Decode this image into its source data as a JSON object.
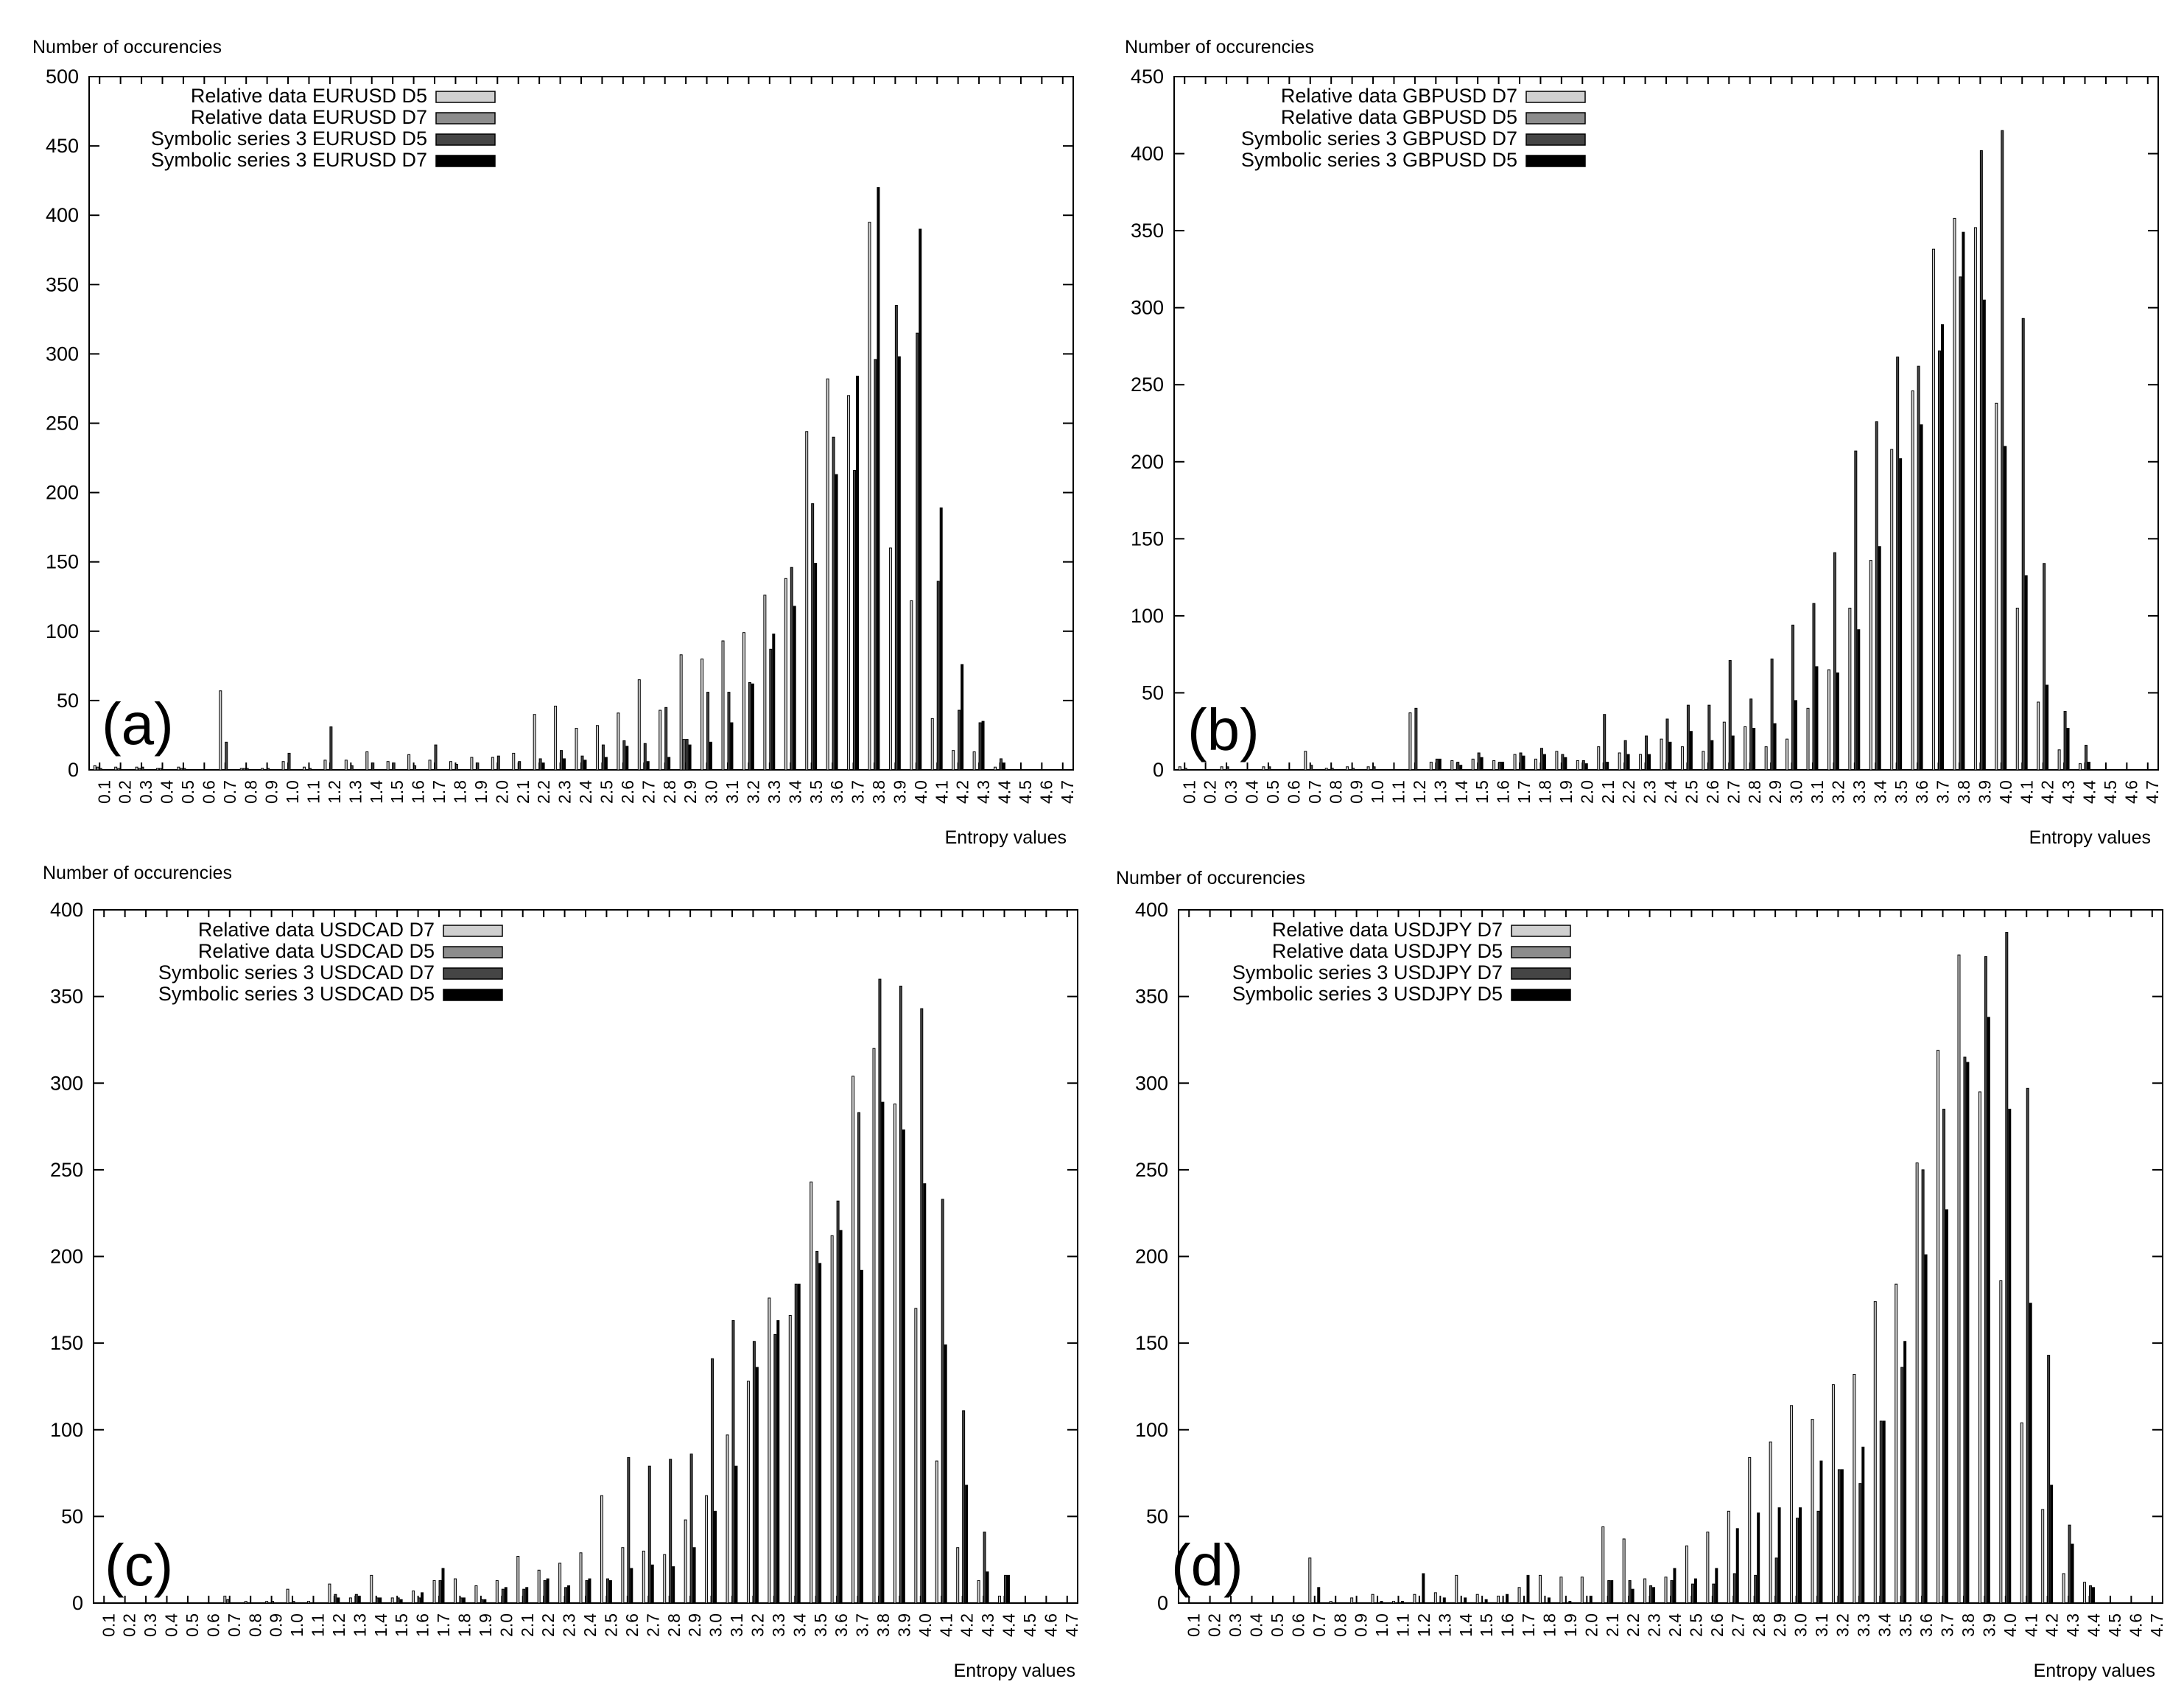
{
  "figure": {
    "colors": {
      "series": [
        "#d0d0d0",
        "#8c8c8c",
        "#454545",
        "#000000"
      ],
      "frame": "#000000",
      "background": "#ffffff"
    }
  },
  "chart_data": [
    {
      "type": "bar",
      "panel_label": "(a)",
      "ylabel": "Number of occurencies",
      "xlabel": "Entropy values",
      "ylim": [
        0,
        500
      ],
      "y_ticks": [
        0,
        50,
        100,
        150,
        200,
        250,
        300,
        350,
        400,
        450,
        500
      ],
      "legend_position": "top-left",
      "grid": false,
      "categories": [
        "0.1",
        "0.2",
        "0.3",
        "0.4",
        "0.5",
        "0.6",
        "0.7",
        "0.8",
        "0.9",
        "1.0",
        "1.1",
        "1.2",
        "1.3",
        "1.4",
        "1.5",
        "1.6",
        "1.7",
        "1.8",
        "1.9",
        "2.0",
        "2.1",
        "2.2",
        "2.3",
        "2.4",
        "2.5",
        "2.6",
        "2.7",
        "2.8",
        "2.9",
        "3.0",
        "3.1",
        "3.2",
        "3.3",
        "3.4",
        "3.5",
        "3.6",
        "3.7",
        "3.8",
        "3.9",
        "4.0",
        "4.1",
        "4.2",
        "4.3",
        "4.4",
        "4.5",
        "4.6",
        "4.7"
      ],
      "series": [
        {
          "name": "Relative data EURUSD D5",
          "values": [
            3,
            2,
            2,
            1,
            2,
            0,
            57,
            1,
            1,
            6,
            2,
            7,
            7,
            13,
            6,
            11,
            7,
            6,
            9,
            9,
            12,
            40,
            46,
            30,
            32,
            41,
            65,
            43,
            83,
            80,
            93,
            99,
            126,
            138,
            244,
            282,
            270,
            395,
            160,
            122,
            37,
            14,
            13,
            2,
            0,
            0,
            0
          ]
        },
        {
          "name": "Relative data EURUSD D7",
          "values": [
            2,
            1,
            1,
            1,
            1,
            0,
            0,
            1,
            0,
            0,
            0,
            0,
            0,
            0,
            0,
            0,
            0,
            0,
            0,
            0,
            0,
            0,
            0,
            0,
            0,
            0,
            0,
            0,
            22,
            0,
            0,
            0,
            0,
            0,
            0,
            0,
            0,
            0,
            0,
            0,
            0,
            0,
            0,
            0,
            0,
            0,
            0
          ]
        },
        {
          "name": "Symbolic series 3 EURUSD D5",
          "values": [
            1,
            0,
            2,
            0,
            1,
            0,
            20,
            1,
            1,
            12,
            1,
            31,
            3,
            5,
            5,
            3,
            18,
            4,
            5,
            10,
            6,
            8,
            14,
            10,
            18,
            21,
            19,
            45,
            22,
            56,
            56,
            63,
            87,
            146,
            192,
            240,
            216,
            296,
            335,
            315,
            136,
            43,
            34,
            8,
            0,
            0,
            0
          ]
        },
        {
          "name": "Symbolic series 3 EURUSD D7",
          "values": [
            0,
            0,
            0,
            0,
            0,
            0,
            0,
            0,
            0,
            0,
            0,
            0,
            0,
            0,
            0,
            0,
            0,
            0,
            0,
            0,
            0,
            5,
            8,
            7,
            9,
            17,
            6,
            9,
            18,
            20,
            34,
            62,
            98,
            118,
            149,
            213,
            284,
            420,
            298,
            390,
            189,
            76,
            35,
            5,
            0,
            0,
            0
          ]
        }
      ]
    },
    {
      "type": "bar",
      "panel_label": "(b)",
      "ylabel": "Number of occurencies",
      "xlabel": "Entropy values",
      "ylim": [
        0,
        450
      ],
      "y_ticks": [
        0,
        50,
        100,
        150,
        200,
        250,
        300,
        350,
        400,
        450
      ],
      "legend_position": "top-left",
      "grid": false,
      "categories": [
        "0.1",
        "0.2",
        "0.3",
        "0.4",
        "0.5",
        "0.6",
        "0.7",
        "0.8",
        "0.9",
        "1.0",
        "1.1",
        "1.2",
        "1.3",
        "1.4",
        "1.5",
        "1.6",
        "1.7",
        "1.8",
        "1.9",
        "2.0",
        "2.1",
        "2.2",
        "2.3",
        "2.4",
        "2.5",
        "2.6",
        "2.7",
        "2.8",
        "2.9",
        "3.0",
        "3.1",
        "3.2",
        "3.3",
        "3.4",
        "3.5",
        "3.6",
        "3.7",
        "3.8",
        "3.9",
        "4.0",
        "4.1",
        "4.2",
        "4.3",
        "4.4",
        "4.5",
        "4.6",
        "4.7"
      ],
      "series": [
        {
          "name": "Relative data GBPUSD D7",
          "values": [
            2,
            0,
            2,
            0,
            2,
            0,
            12,
            1,
            2,
            2,
            0,
            37,
            5,
            6,
            7,
            6,
            10,
            7,
            12,
            6,
            15,
            11,
            10,
            20,
            15,
            12,
            31,
            28,
            15,
            20,
            40,
            65,
            105,
            136,
            208,
            246,
            338,
            358,
            352,
            238,
            105,
            44,
            13,
            4,
            0,
            0,
            0
          ]
        },
        {
          "name": "Relative data GBPUSD D5",
          "values": [
            0,
            0,
            0,
            0,
            0,
            0,
            0,
            0,
            0,
            0,
            0,
            0,
            0,
            0,
            0,
            0,
            0,
            0,
            0,
            0,
            0,
            0,
            0,
            0,
            0,
            0,
            0,
            0,
            0,
            0,
            0,
            0,
            0,
            0,
            0,
            0,
            0,
            0,
            0,
            0,
            0,
            0,
            0,
            0,
            0,
            0,
            0
          ]
        },
        {
          "name": "Symbolic series 3 GBPUSD D7",
          "values": [
            1,
            0,
            2,
            0,
            2,
            0,
            3,
            1,
            1,
            2,
            0,
            40,
            7,
            5,
            11,
            5,
            11,
            14,
            10,
            6,
            36,
            19,
            22,
            33,
            42,
            42,
            71,
            46,
            72,
            94,
            108,
            141,
            207,
            226,
            268,
            262,
            272,
            320,
            402,
            415,
            293,
            134,
            38,
            16,
            0,
            0,
            0
          ]
        },
        {
          "name": "Symbolic series 3 GBPUSD D5",
          "values": [
            0,
            0,
            0,
            0,
            0,
            0,
            0,
            0,
            0,
            0,
            0,
            0,
            7,
            3,
            8,
            5,
            9,
            10,
            8,
            4,
            5,
            10,
            10,
            18,
            25,
            19,
            22,
            27,
            30,
            45,
            67,
            63,
            91,
            145,
            202,
            224,
            289,
            349,
            305,
            210,
            126,
            55,
            27,
            5,
            0,
            0,
            0
          ]
        }
      ]
    },
    {
      "type": "bar",
      "panel_label": "(c)",
      "ylabel": "Number of occurencies",
      "xlabel": "Entropy values",
      "ylim": [
        0,
        400
      ],
      "y_ticks": [
        0,
        50,
        100,
        150,
        200,
        250,
        300,
        350,
        400
      ],
      "legend_position": "top-left",
      "grid": false,
      "categories": [
        "0.1",
        "0.2",
        "0.3",
        "0.4",
        "0.5",
        "0.6",
        "0.7",
        "0.8",
        "0.9",
        "1.0",
        "1.1",
        "1.2",
        "1.3",
        "1.4",
        "1.5",
        "1.6",
        "1.7",
        "1.8",
        "1.9",
        "2.0",
        "2.1",
        "2.2",
        "2.3",
        "2.4",
        "2.5",
        "2.6",
        "2.7",
        "2.8",
        "2.9",
        "3.0",
        "3.1",
        "3.2",
        "3.3",
        "3.4",
        "3.5",
        "3.6",
        "3.7",
        "3.8",
        "3.9",
        "4.0",
        "4.1",
        "4.2",
        "4.3",
        "4.4",
        "4.5",
        "4.6",
        "4.7"
      ],
      "series": [
        {
          "name": "Relative data USDCAD D7",
          "values": [
            0,
            0,
            0,
            0,
            0,
            0,
            4,
            1,
            1,
            8,
            1,
            11,
            3,
            16,
            3,
            7,
            13,
            14,
            10,
            13,
            27,
            19,
            23,
            29,
            62,
            32,
            30,
            28,
            48,
            62,
            97,
            128,
            176,
            166,
            243,
            212,
            304,
            320,
            288,
            170,
            82,
            32,
            13,
            4,
            0,
            0,
            0
          ]
        },
        {
          "name": "Relative data USDCAD D5",
          "values": [
            0,
            0,
            0,
            0,
            0,
            0,
            2,
            0,
            0,
            0,
            0,
            0,
            0,
            0,
            0,
            0,
            0,
            0,
            0,
            0,
            0,
            0,
            0,
            0,
            0,
            0,
            0,
            0,
            0,
            0,
            0,
            0,
            0,
            0,
            0,
            0,
            0,
            0,
            0,
            0,
            0,
            0,
            0,
            0,
            0,
            0,
            0
          ]
        },
        {
          "name": "Symbolic series 3 USDCAD D7",
          "values": [
            0,
            0,
            0,
            0,
            0,
            0,
            0,
            0,
            1,
            1,
            0,
            5,
            5,
            3,
            3,
            3,
            13,
            3,
            2,
            8,
            8,
            13,
            9,
            13,
            14,
            84,
            79,
            83,
            86,
            141,
            163,
            151,
            155,
            184,
            203,
            232,
            283,
            360,
            356,
            343,
            233,
            111,
            41,
            16,
            0,
            0,
            0
          ]
        },
        {
          "name": "Symbolic series 3 USDCAD D5",
          "values": [
            0,
            0,
            0,
            0,
            0,
            0,
            0,
            0,
            0,
            0,
            0,
            3,
            4,
            3,
            2,
            6,
            20,
            3,
            2,
            9,
            9,
            14,
            10,
            14,
            13,
            20,
            22,
            21,
            32,
            53,
            79,
            136,
            163,
            184,
            196,
            215,
            192,
            289,
            273,
            242,
            149,
            68,
            18,
            16,
            0,
            0,
            0
          ]
        }
      ]
    },
    {
      "type": "bar",
      "panel_label": "(d)",
      "ylabel": "Number of occurencies",
      "xlabel": "Entropy values",
      "ylim": [
        0,
        400
      ],
      "y_ticks": [
        0,
        50,
        100,
        150,
        200,
        250,
        300,
        350,
        400
      ],
      "legend_position": "top-left",
      "grid": false,
      "categories": [
        "0.1",
        "0.2",
        "0.3",
        "0.4",
        "0.5",
        "0.6",
        "0.7",
        "0.8",
        "0.9",
        "1.0",
        "1.1",
        "1.2",
        "1.3",
        "1.4",
        "1.5",
        "1.6",
        "1.7",
        "1.8",
        "1.9",
        "2.0",
        "2.1",
        "2.2",
        "2.3",
        "2.4",
        "2.5",
        "2.6",
        "2.7",
        "2.8",
        "2.9",
        "3.0",
        "3.1",
        "3.2",
        "3.3",
        "3.4",
        "3.5",
        "3.6",
        "3.7",
        "3.8",
        "3.9",
        "4.0",
        "4.1",
        "4.2",
        "4.3",
        "4.4",
        "4.5",
        "4.6",
        "4.7"
      ],
      "series": [
        {
          "name": "Relative data USDJPY D7",
          "values": [
            0,
            0,
            0,
            0,
            0,
            0,
            26,
            1,
            3,
            5,
            1,
            5,
            6,
            16,
            5,
            4,
            9,
            16,
            15,
            15,
            44,
            37,
            14,
            15,
            33,
            41,
            53,
            84,
            93,
            114,
            106,
            126,
            132,
            174,
            184,
            254,
            319,
            374,
            295,
            186,
            104,
            54,
            17,
            12,
            0,
            0,
            0
          ]
        },
        {
          "name": "Relative data USDJPY D5",
          "values": [
            0,
            0,
            0,
            0,
            0,
            0,
            0,
            0,
            0,
            0,
            0,
            0,
            0,
            0,
            0,
            0,
            0,
            0,
            0,
            0,
            0,
            0,
            0,
            0,
            0,
            0,
            0,
            0,
            0,
            0,
            0,
            0,
            0,
            0,
            0,
            0,
            0,
            0,
            0,
            0,
            0,
            0,
            0,
            0,
            0,
            0,
            0
          ]
        },
        {
          "name": "Symbolic series 3 USDJPY D7",
          "values": [
            0,
            0,
            0,
            0,
            0,
            0,
            0,
            0,
            0,
            0,
            0,
            0,
            0,
            0,
            0,
            0,
            0,
            0,
            0,
            0,
            13,
            13,
            10,
            13,
            11,
            11,
            17,
            16,
            26,
            49,
            53,
            77,
            69,
            105,
            136,
            250,
            285,
            315,
            373,
            387,
            297,
            143,
            45,
            10,
            0,
            0,
            0
          ]
        },
        {
          "name": "Symbolic series 3 USDJPY D5",
          "values": [
            0,
            0,
            0,
            0,
            0,
            0,
            9,
            0,
            0,
            1,
            1,
            17,
            3,
            3,
            2,
            5,
            16,
            3,
            1,
            4,
            13,
            8,
            9,
            20,
            14,
            20,
            43,
            52,
            55,
            55,
            82,
            77,
            90,
            105,
            151,
            201,
            227,
            312,
            338,
            285,
            173,
            68,
            34,
            9,
            0,
            0,
            0
          ]
        }
      ]
    }
  ]
}
